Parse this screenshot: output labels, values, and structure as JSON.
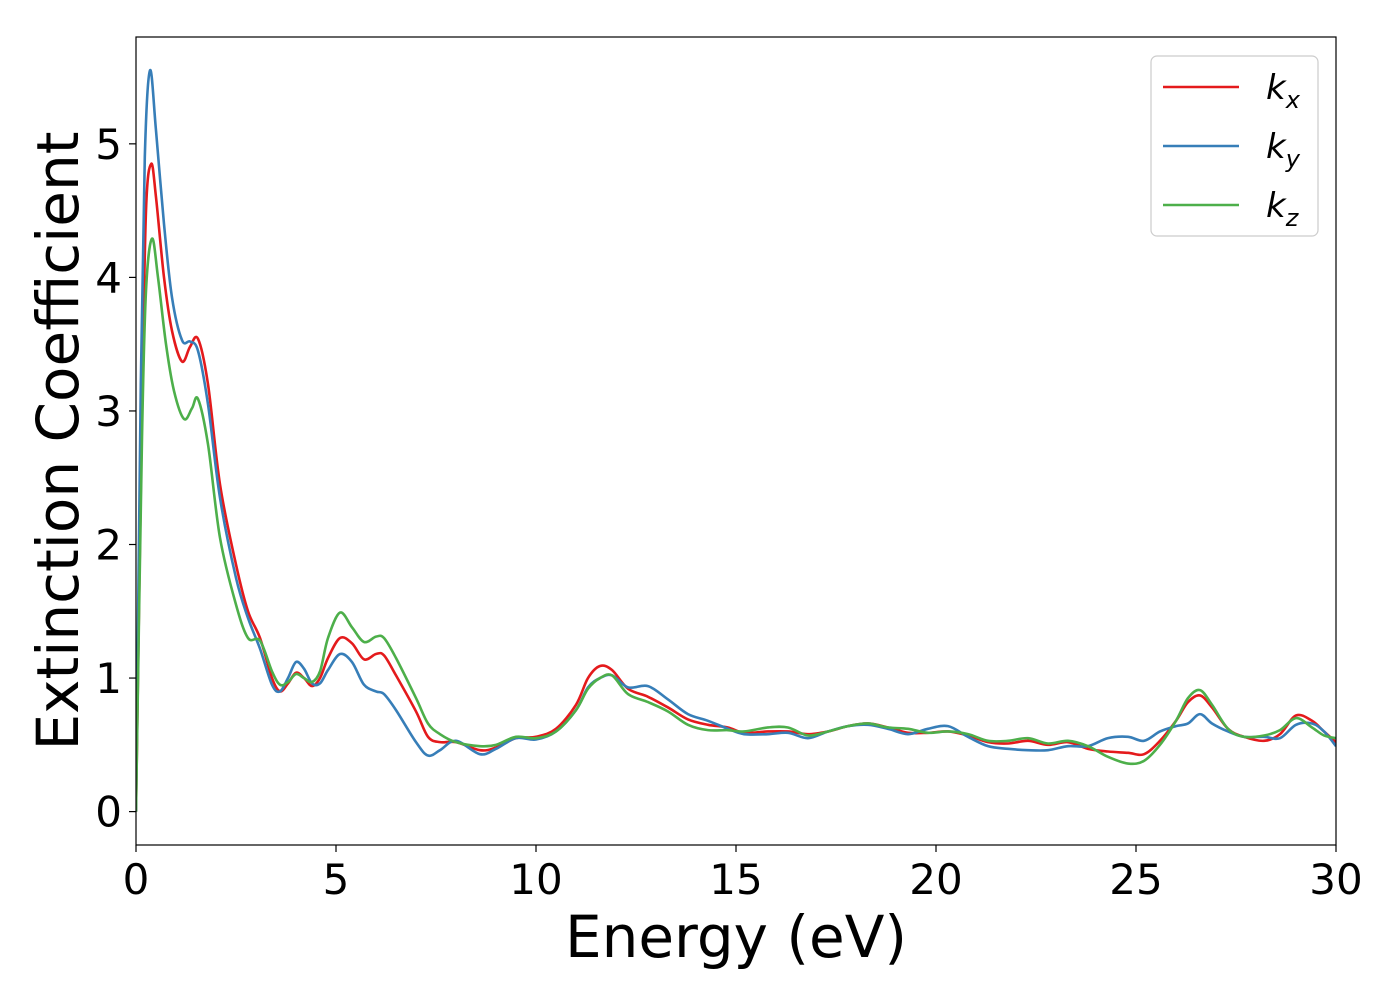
{
  "chart_data": {
    "type": "line",
    "title": "",
    "xlabel": "Energy (eV)",
    "ylabel": "Extinction Coefficient",
    "xlim": [
      0,
      30
    ],
    "ylim": [
      -0.25,
      5.8
    ],
    "xticks": [
      0,
      5,
      10,
      15,
      20,
      25,
      30
    ],
    "yticks": [
      0,
      1,
      2,
      3,
      4,
      5
    ],
    "grid": false,
    "legend": {
      "placement": "top-right"
    },
    "series": [
      {
        "name": "k_x",
        "label_main": "k",
        "label_sub": "x",
        "color": "#e41a1c",
        "points": [
          [
            0,
            0
          ],
          [
            0.15,
            3.0
          ],
          [
            0.25,
            4.5
          ],
          [
            0.38,
            4.85
          ],
          [
            0.5,
            4.6
          ],
          [
            0.7,
            4.0
          ],
          [
            0.9,
            3.6
          ],
          [
            1.15,
            3.37
          ],
          [
            1.35,
            3.48
          ],
          [
            1.55,
            3.54
          ],
          [
            1.8,
            3.2
          ],
          [
            2.1,
            2.45
          ],
          [
            2.5,
            1.85
          ],
          [
            2.8,
            1.5
          ],
          [
            3.1,
            1.3
          ],
          [
            3.4,
            1.0
          ],
          [
            3.6,
            0.9
          ],
          [
            3.8,
            0.96
          ],
          [
            4.0,
            1.04
          ],
          [
            4.2,
            1.0
          ],
          [
            4.4,
            0.94
          ],
          [
            4.6,
            1.0
          ],
          [
            4.8,
            1.15
          ],
          [
            5.1,
            1.3
          ],
          [
            5.4,
            1.26
          ],
          [
            5.7,
            1.14
          ],
          [
            6.0,
            1.18
          ],
          [
            6.2,
            1.17
          ],
          [
            6.5,
            1.02
          ],
          [
            7.0,
            0.75
          ],
          [
            7.3,
            0.56
          ],
          [
            7.6,
            0.52
          ],
          [
            8.0,
            0.52
          ],
          [
            8.6,
            0.46
          ],
          [
            9.0,
            0.48
          ],
          [
            9.5,
            0.55
          ],
          [
            10.0,
            0.56
          ],
          [
            10.5,
            0.62
          ],
          [
            11.0,
            0.8
          ],
          [
            11.3,
            1.0
          ],
          [
            11.6,
            1.09
          ],
          [
            11.9,
            1.06
          ],
          [
            12.3,
            0.92
          ],
          [
            12.8,
            0.86
          ],
          [
            13.3,
            0.78
          ],
          [
            13.8,
            0.69
          ],
          [
            14.3,
            0.65
          ],
          [
            14.8,
            0.63
          ],
          [
            15.2,
            0.59
          ],
          [
            15.8,
            0.6
          ],
          [
            16.3,
            0.6
          ],
          [
            16.8,
            0.58
          ],
          [
            17.3,
            0.6
          ],
          [
            17.8,
            0.64
          ],
          [
            18.3,
            0.66
          ],
          [
            18.8,
            0.63
          ],
          [
            19.3,
            0.59
          ],
          [
            19.8,
            0.59
          ],
          [
            20.3,
            0.6
          ],
          [
            20.8,
            0.57
          ],
          [
            21.3,
            0.52
          ],
          [
            21.8,
            0.51
          ],
          [
            22.3,
            0.53
          ],
          [
            22.8,
            0.5
          ],
          [
            23.3,
            0.52
          ],
          [
            23.8,
            0.47
          ],
          [
            24.3,
            0.45
          ],
          [
            24.8,
            0.44
          ],
          [
            25.2,
            0.43
          ],
          [
            25.6,
            0.53
          ],
          [
            26.0,
            0.68
          ],
          [
            26.3,
            0.82
          ],
          [
            26.6,
            0.87
          ],
          [
            26.9,
            0.78
          ],
          [
            27.3,
            0.62
          ],
          [
            27.7,
            0.56
          ],
          [
            28.2,
            0.53
          ],
          [
            28.6,
            0.58
          ],
          [
            29.0,
            0.72
          ],
          [
            29.4,
            0.68
          ],
          [
            29.7,
            0.6
          ],
          [
            30.0,
            0.52
          ]
        ]
      },
      {
        "name": "k_y",
        "label_main": "k",
        "label_sub": "y",
        "color": "#377eb8",
        "points": [
          [
            0,
            0
          ],
          [
            0.12,
            3.2
          ],
          [
            0.22,
            4.9
          ],
          [
            0.35,
            5.55
          ],
          [
            0.5,
            5.1
          ],
          [
            0.7,
            4.4
          ],
          [
            0.9,
            3.85
          ],
          [
            1.15,
            3.53
          ],
          [
            1.35,
            3.52
          ],
          [
            1.55,
            3.45
          ],
          [
            1.8,
            3.05
          ],
          [
            2.1,
            2.35
          ],
          [
            2.5,
            1.75
          ],
          [
            2.8,
            1.45
          ],
          [
            3.1,
            1.22
          ],
          [
            3.4,
            0.95
          ],
          [
            3.6,
            0.9
          ],
          [
            3.8,
            1.0
          ],
          [
            4.0,
            1.12
          ],
          [
            4.2,
            1.07
          ],
          [
            4.4,
            0.96
          ],
          [
            4.6,
            0.96
          ],
          [
            4.8,
            1.06
          ],
          [
            5.1,
            1.18
          ],
          [
            5.4,
            1.12
          ],
          [
            5.7,
            0.95
          ],
          [
            6.0,
            0.9
          ],
          [
            6.2,
            0.88
          ],
          [
            6.5,
            0.76
          ],
          [
            7.0,
            0.52
          ],
          [
            7.3,
            0.42
          ],
          [
            7.6,
            0.46
          ],
          [
            8.0,
            0.53
          ],
          [
            8.6,
            0.43
          ],
          [
            9.0,
            0.47
          ],
          [
            9.5,
            0.55
          ],
          [
            10.0,
            0.54
          ],
          [
            10.5,
            0.6
          ],
          [
            11.0,
            0.76
          ],
          [
            11.3,
            0.93
          ],
          [
            11.6,
            1.0
          ],
          [
            11.9,
            1.02
          ],
          [
            12.3,
            0.93
          ],
          [
            12.8,
            0.94
          ],
          [
            13.3,
            0.84
          ],
          [
            13.8,
            0.73
          ],
          [
            14.3,
            0.68
          ],
          [
            14.8,
            0.62
          ],
          [
            15.2,
            0.58
          ],
          [
            15.8,
            0.58
          ],
          [
            16.3,
            0.59
          ],
          [
            16.8,
            0.55
          ],
          [
            17.3,
            0.6
          ],
          [
            17.8,
            0.64
          ],
          [
            18.3,
            0.65
          ],
          [
            18.8,
            0.62
          ],
          [
            19.3,
            0.58
          ],
          [
            19.8,
            0.62
          ],
          [
            20.3,
            0.64
          ],
          [
            20.8,
            0.56
          ],
          [
            21.3,
            0.49
          ],
          [
            21.8,
            0.47
          ],
          [
            22.3,
            0.46
          ],
          [
            22.8,
            0.46
          ],
          [
            23.3,
            0.49
          ],
          [
            23.8,
            0.49
          ],
          [
            24.3,
            0.55
          ],
          [
            24.8,
            0.56
          ],
          [
            25.2,
            0.53
          ],
          [
            25.6,
            0.6
          ],
          [
            26.0,
            0.64
          ],
          [
            26.3,
            0.66
          ],
          [
            26.6,
            0.73
          ],
          [
            26.9,
            0.66
          ],
          [
            27.3,
            0.6
          ],
          [
            27.7,
            0.56
          ],
          [
            28.2,
            0.56
          ],
          [
            28.6,
            0.55
          ],
          [
            29.0,
            0.65
          ],
          [
            29.4,
            0.66
          ],
          [
            29.7,
            0.6
          ],
          [
            30.0,
            0.49
          ]
        ]
      },
      {
        "name": "k_z",
        "label_main": "k",
        "label_sub": "z",
        "color": "#4daf4a",
        "points": [
          [
            0,
            0
          ],
          [
            0.15,
            2.8
          ],
          [
            0.25,
            3.9
          ],
          [
            0.4,
            4.29
          ],
          [
            0.55,
            4.0
          ],
          [
            0.75,
            3.5
          ],
          [
            0.95,
            3.15
          ],
          [
            1.2,
            2.94
          ],
          [
            1.4,
            3.02
          ],
          [
            1.55,
            3.09
          ],
          [
            1.8,
            2.75
          ],
          [
            2.1,
            2.05
          ],
          [
            2.5,
            1.55
          ],
          [
            2.8,
            1.3
          ],
          [
            3.1,
            1.28
          ],
          [
            3.4,
            1.05
          ],
          [
            3.6,
            0.95
          ],
          [
            3.8,
            0.97
          ],
          [
            4.0,
            1.03
          ],
          [
            4.2,
            1.0
          ],
          [
            4.4,
            0.97
          ],
          [
            4.6,
            1.05
          ],
          [
            4.8,
            1.3
          ],
          [
            5.1,
            1.49
          ],
          [
            5.4,
            1.38
          ],
          [
            5.7,
            1.27
          ],
          [
            6.0,
            1.31
          ],
          [
            6.2,
            1.3
          ],
          [
            6.5,
            1.15
          ],
          [
            7.0,
            0.85
          ],
          [
            7.3,
            0.66
          ],
          [
            7.6,
            0.58
          ],
          [
            8.0,
            0.52
          ],
          [
            8.6,
            0.49
          ],
          [
            9.0,
            0.5
          ],
          [
            9.5,
            0.56
          ],
          [
            10.0,
            0.55
          ],
          [
            10.5,
            0.6
          ],
          [
            11.0,
            0.76
          ],
          [
            11.3,
            0.92
          ],
          [
            11.6,
            1.0
          ],
          [
            11.9,
            1.02
          ],
          [
            12.3,
            0.88
          ],
          [
            12.8,
            0.82
          ],
          [
            13.3,
            0.75
          ],
          [
            13.8,
            0.65
          ],
          [
            14.3,
            0.61
          ],
          [
            14.8,
            0.61
          ],
          [
            15.2,
            0.6
          ],
          [
            15.8,
            0.63
          ],
          [
            16.3,
            0.63
          ],
          [
            16.8,
            0.57
          ],
          [
            17.3,
            0.6
          ],
          [
            17.8,
            0.64
          ],
          [
            18.3,
            0.66
          ],
          [
            18.8,
            0.63
          ],
          [
            19.3,
            0.62
          ],
          [
            19.8,
            0.59
          ],
          [
            20.3,
            0.6
          ],
          [
            20.8,
            0.58
          ],
          [
            21.3,
            0.53
          ],
          [
            21.8,
            0.53
          ],
          [
            22.3,
            0.55
          ],
          [
            22.8,
            0.51
          ],
          [
            23.3,
            0.53
          ],
          [
            23.8,
            0.49
          ],
          [
            24.3,
            0.41
          ],
          [
            24.8,
            0.36
          ],
          [
            25.2,
            0.38
          ],
          [
            25.6,
            0.5
          ],
          [
            26.0,
            0.68
          ],
          [
            26.3,
            0.85
          ],
          [
            26.6,
            0.91
          ],
          [
            26.9,
            0.8
          ],
          [
            27.3,
            0.62
          ],
          [
            27.7,
            0.56
          ],
          [
            28.2,
            0.57
          ],
          [
            28.6,
            0.61
          ],
          [
            29.0,
            0.7
          ],
          [
            29.4,
            0.63
          ],
          [
            29.7,
            0.57
          ],
          [
            30.0,
            0.55
          ]
        ]
      }
    ]
  }
}
